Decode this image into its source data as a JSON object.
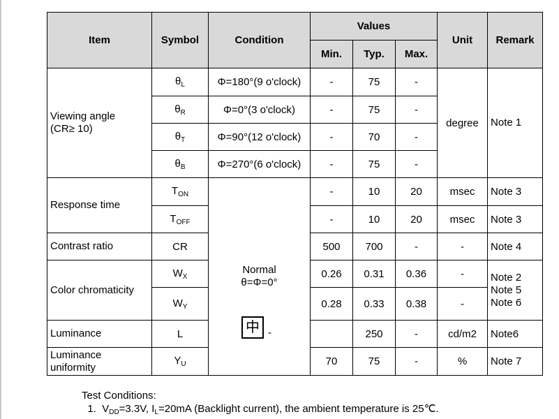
{
  "header": {
    "item": "Item",
    "symbol": "Symbol",
    "condition": "Condition",
    "values": "Values",
    "min": "Min.",
    "typ": "Typ.",
    "max": "Max.",
    "unit": "Unit",
    "remark": "Remark"
  },
  "groups": [
    {
      "item": [
        "Viewing angle",
        "(CR≥ 10)"
      ],
      "unit": "degree",
      "remark": [
        "Note 1"
      ],
      "rows": [
        {
          "symbol": "θ",
          "sub": "L",
          "condition": "Φ=180°(9 o'clock)",
          "min": "-",
          "typ": 75,
          "max": "-"
        },
        {
          "symbol": "θ",
          "sub": "R",
          "condition": "Φ=0°(3 o'clock)",
          "min": "-",
          "typ": 75,
          "max": "-"
        },
        {
          "symbol": "θ",
          "sub": "T",
          "condition": "Φ=90°(12 o'clock)",
          "min": "-",
          "typ": 70,
          "max": "-"
        },
        {
          "symbol": "θ",
          "sub": "B",
          "condition": "Φ=270°(6 o'clock)",
          "min": "-",
          "typ": 75,
          "max": "-"
        }
      ]
    },
    {
      "item": [
        "Response time"
      ],
      "rows": [
        {
          "symbol": "T",
          "sub": "ON",
          "min": "-",
          "typ": 10,
          "max": 20,
          "unit": "msec",
          "remark": "Note 3"
        },
        {
          "symbol": "T",
          "sub": "OFF",
          "min": "-",
          "typ": 10,
          "max": 20,
          "unit": "msec",
          "remark": "Note 3"
        }
      ]
    },
    {
      "item": [
        "Contrast ratio"
      ],
      "rows": [
        {
          "symbol": "CR",
          "min": 500,
          "typ": 700,
          "max": "-",
          "unit": "-",
          "remark": "Note 4"
        }
      ]
    },
    {
      "item": [
        "Color chromaticity"
      ],
      "remark": [
        "Note 2",
        "Note 5",
        "Note 6"
      ],
      "rows": [
        {
          "symbol": "W",
          "sub": "X",
          "min": 0.26,
          "typ": 0.31,
          "max": 0.36,
          "unit": "-"
        },
        {
          "symbol": "W",
          "sub": "Y",
          "min": 0.28,
          "typ": 0.33,
          "max": 0.38,
          "unit": "-"
        }
      ]
    },
    {
      "item": [
        "Luminance"
      ],
      "rows": [
        {
          "symbol": "L",
          "typ": 250,
          "max": "-",
          "unit": "cd/m2",
          "remark": "Note6"
        }
      ]
    },
    {
      "item": [
        "Luminance",
        "uniformity"
      ],
      "rows": [
        {
          "symbol": "Y",
          "sub": "U",
          "min": 70,
          "typ": 75,
          "max": "-",
          "unit": "%",
          "remark": "Note 7"
        }
      ]
    }
  ],
  "shared_condition": [
    "Normal",
    "θ=Φ=0°"
  ],
  "overlay": {
    "icon": "中",
    "dash": "-"
  },
  "notes": {
    "title": "Test Conditions:",
    "items": [
      {
        "number": "1.",
        "v": "V",
        "vsub": "DD",
        "a": "=3.3V, I",
        "isub": "L",
        "b": "=20mA (Backlight current), the ambient temperature is 25℃."
      }
    ]
  }
}
